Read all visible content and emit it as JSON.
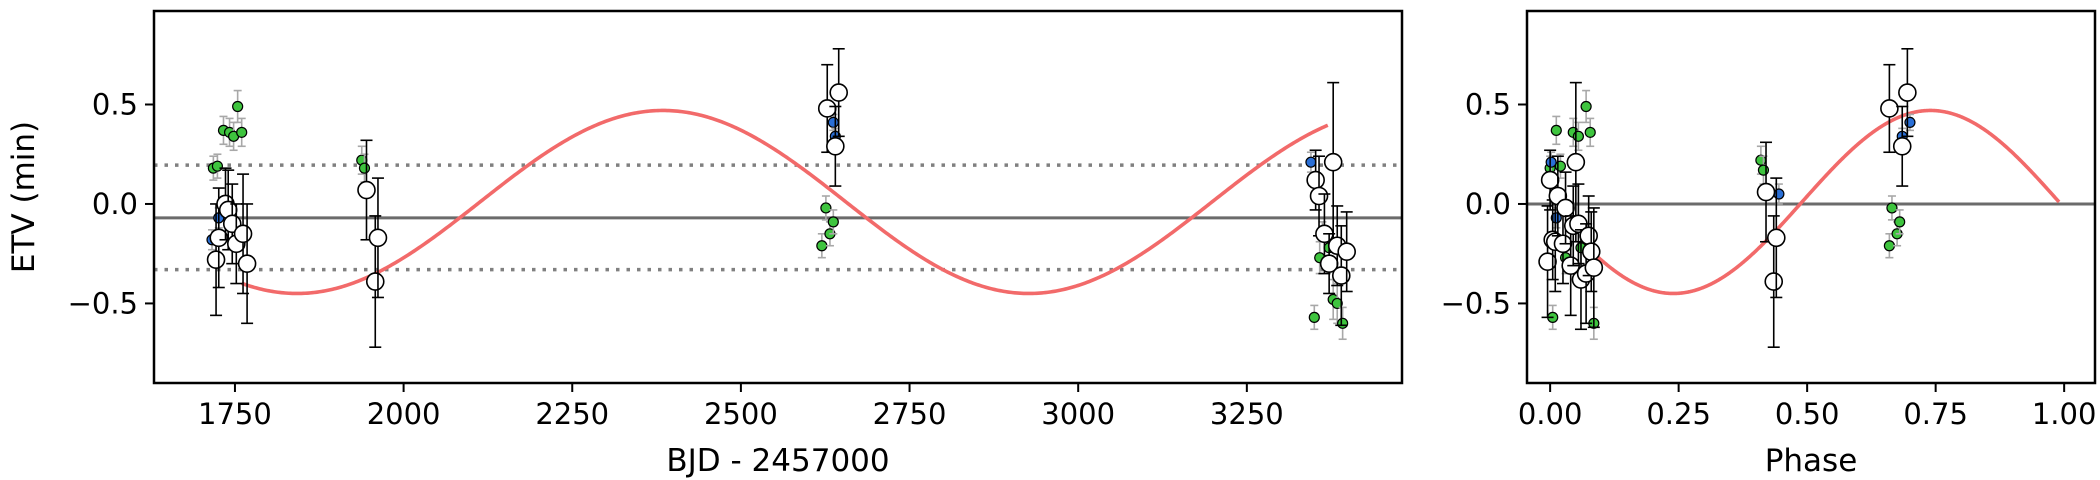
{
  "chart_data": [
    {
      "type": "scatter",
      "xlabel": "BJD - 2457000",
      "ylabel": "ETV (min)",
      "xlim": [
        1630,
        3480
      ],
      "ylim": [
        -0.9,
        0.97
      ],
      "xticks": [
        1750,
        2000,
        2250,
        2500,
        2750,
        3000,
        3250
      ],
      "xtick_labels": [
        "1750",
        "2000",
        "2250",
        "2500",
        "2750",
        "3000",
        "3250"
      ],
      "yticks": [
        -0.5,
        0.0,
        0.5
      ],
      "ytick_labels": [
        "−0.5",
        "0.0",
        "0.5"
      ],
      "grid": false,
      "horizontal_lines": [
        {
          "y": -0.07,
          "style": "solid",
          "color": "#6b6b6b"
        },
        {
          "y": 0.195,
          "style": "dotted",
          "color": "#808080"
        },
        {
          "y": -0.33,
          "style": "dotted",
          "color": "#808080"
        }
      ],
      "model": {
        "type": "sinusoid",
        "amplitude": 0.46,
        "offset": 0.01,
        "period": 1085,
        "phase_zero": 1842,
        "x_range": [
          1760,
          3370
        ],
        "color": "#f26a6a"
      },
      "series": [
        {
          "marker": "small-circle",
          "color": "#3ec43e",
          "x": [
            1718,
            1724,
            1733,
            1742,
            1748,
            1754,
            1760,
            1938,
            1942,
            2620,
            2626,
            2632,
            2637,
            3350,
            3358,
            3372,
            3378,
            3384,
            3392
          ],
          "y": [
            0.18,
            0.19,
            0.37,
            0.36,
            0.34,
            0.49,
            0.36,
            0.22,
            0.18,
            -0.21,
            -0.02,
            -0.15,
            -0.09,
            -0.57,
            -0.27,
            -0.22,
            -0.48,
            -0.5,
            -0.6
          ],
          "yerr": [
            0.06,
            0.06,
            0.07,
            0.07,
            0.07,
            0.08,
            0.07,
            0.07,
            0.07,
            0.06,
            0.06,
            0.06,
            0.06,
            0.06,
            0.08,
            0.08,
            0.1,
            0.1,
            0.08
          ]
        },
        {
          "marker": "small-circle",
          "color": "#2a6fd6",
          "x": [
            1716,
            1726,
            2637,
            2640,
            3345,
            3362
          ],
          "y": [
            -0.18,
            -0.07,
            0.41,
            0.34,
            0.21,
            -0.14
          ],
          "yerr": [
            0.05,
            0.05,
            0.04,
            0.04,
            0.05,
            0.05
          ]
        },
        {
          "marker": "large-open-circle",
          "color": "#ffffff",
          "x": [
            1722,
            1726,
            1736,
            1740,
            1746,
            1752,
            1762,
            1768,
            1945,
            1958,
            1962,
            2628,
            2640,
            2645,
            3352,
            3357,
            3365,
            3372,
            3378,
            3384,
            3390,
            3398
          ],
          "y": [
            -0.28,
            -0.17,
            0.0,
            -0.03,
            -0.1,
            -0.2,
            -0.15,
            -0.3,
            0.07,
            -0.39,
            -0.17,
            0.48,
            0.29,
            0.56,
            0.12,
            0.04,
            -0.15,
            -0.3,
            0.21,
            -0.21,
            -0.36,
            -0.24
          ],
          "yerr": [
            0.28,
            0.25,
            0.18,
            0.2,
            0.2,
            0.2,
            0.3,
            0.3,
            0.25,
            0.33,
            0.3,
            0.22,
            0.2,
            0.22,
            0.15,
            0.2,
            0.2,
            0.15,
            0.4,
            0.2,
            0.25,
            0.2
          ]
        }
      ]
    },
    {
      "type": "scatter",
      "xlabel": "Phase",
      "ylabel": "",
      "xlim": [
        -0.045,
        1.06
      ],
      "ylim": [
        -0.9,
        0.97
      ],
      "xticks": [
        0.0,
        0.25,
        0.5,
        0.75,
        1.0
      ],
      "xtick_labels": [
        "0.00",
        "0.25",
        "0.50",
        "0.75",
        "1.00"
      ],
      "yticks": [
        -0.5,
        0.0,
        0.5
      ],
      "ytick_labels": [
        "−0.5",
        "0.0",
        "0.5"
      ],
      "grid": false,
      "horizontal_lines": [
        {
          "y": 0.0,
          "style": "solid",
          "color": "#6b6b6b"
        }
      ],
      "model": {
        "type": "sinusoid",
        "amplitude": 0.46,
        "offset": 0.01,
        "period": 1.0,
        "phase_zero": 0.24,
        "x_range": [
          0.06,
          0.99
        ],
        "color": "#f26a6a"
      },
      "series": [
        {
          "marker": "small-circle",
          "color": "#3ec43e",
          "x": [
            0.0,
            0.005,
            0.012,
            0.02,
            0.03,
            0.045,
            0.055,
            0.06,
            0.07,
            0.078,
            0.085,
            0.41,
            0.415,
            0.66,
            0.665,
            0.675,
            0.68
          ],
          "y": [
            0.18,
            -0.57,
            0.37,
            0.19,
            -0.27,
            0.36,
            0.34,
            -0.22,
            0.49,
            0.36,
            -0.6,
            0.22,
            0.17,
            -0.21,
            -0.02,
            -0.15,
            -0.09
          ],
          "yerr": [
            0.06,
            0.06,
            0.07,
            0.06,
            0.08,
            0.07,
            0.07,
            0.08,
            0.08,
            0.07,
            0.08,
            0.07,
            0.07,
            0.06,
            0.06,
            0.06,
            0.06
          ]
        },
        {
          "marker": "small-circle",
          "color": "#2a6fd6",
          "x": [
            0.002,
            0.012,
            0.445,
            0.685,
            0.7
          ],
          "y": [
            0.21,
            -0.07,
            0.05,
            0.34,
            0.41
          ],
          "yerr": [
            0.05,
            0.05,
            0.05,
            0.04,
            0.04
          ]
        },
        {
          "marker": "large-open-circle",
          "color": "#ffffff",
          "x": [
            -0.005,
            0.0,
            0.005,
            0.01,
            0.015,
            0.025,
            0.03,
            0.04,
            0.045,
            0.05,
            0.055,
            0.06,
            0.07,
            0.075,
            0.08,
            0.085,
            0.42,
            0.435,
            0.44,
            0.66,
            0.685,
            0.695
          ],
          "y": [
            -0.29,
            0.12,
            -0.18,
            -0.19,
            0.04,
            -0.2,
            -0.02,
            -0.31,
            -0.11,
            0.21,
            -0.1,
            -0.38,
            -0.35,
            -0.16,
            -0.24,
            -0.32,
            0.06,
            -0.39,
            -0.17,
            0.48,
            0.29,
            0.56
          ],
          "yerr": [
            0.28,
            0.15,
            0.2,
            0.25,
            0.2,
            0.2,
            0.18,
            0.25,
            0.2,
            0.4,
            0.2,
            0.25,
            0.25,
            0.2,
            0.2,
            0.3,
            0.25,
            0.33,
            0.3,
            0.22,
            0.2,
            0.22
          ]
        }
      ]
    }
  ]
}
